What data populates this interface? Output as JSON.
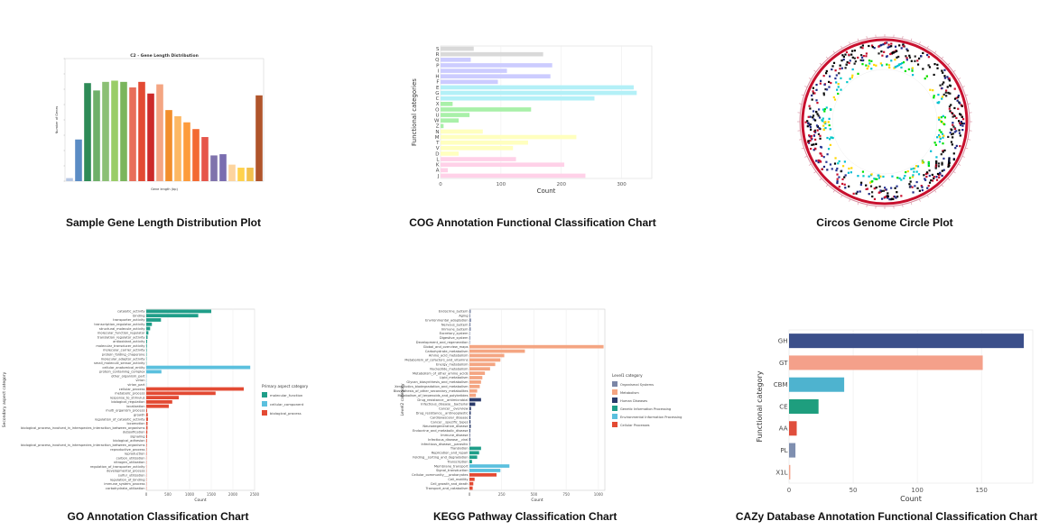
{
  "captions": {
    "p1": "Sample Gene Length Distribution Plot",
    "p2": "COG Annotation Functional Classification Chart",
    "p3": "Circos Genome Circle Plot",
    "p4": "GO Annotation Classification Chart",
    "p5": "KEGG Pathway Classification Chart",
    "p6": "CAZy Database Annotation Functional Classification Chart"
  },
  "chart_data": [
    {
      "type": "bar",
      "title": "C2 - Gene Length Distribution",
      "xlabel": "Gene length (bp)",
      "ylabel": "Number of Genes",
      "ylim": [
        0,
        200
      ],
      "values": [
        5,
        68,
        160,
        148,
        162,
        164,
        162,
        153,
        162,
        143,
        158,
        116,
        106,
        96,
        85,
        72,
        42,
        44,
        27,
        22,
        22,
        140
      ],
      "colors": [
        "#b7c7e3",
        "#5b8cc4",
        "#2e8b57",
        "#6fb06a",
        "#8cc075",
        "#9acd68",
        "#7ab55c",
        "#e86e5a",
        "#e34a33",
        "#cc2a2a",
        "#f4a582",
        "#f28e2b",
        "#fdb863",
        "#fd9b3b",
        "#f36a32",
        "#e6564b",
        "#8073ac",
        "#7a6db0",
        "#fdd49e",
        "#ffd24d",
        "#f2c14e",
        "#b0552b"
      ]
    },
    {
      "type": "bar",
      "orientation": "horizontal",
      "xlabel": "Count",
      "ylabel": "Functional categories",
      "xlim": [
        0,
        350
      ],
      "xticks": [
        0,
        100,
        200,
        300
      ],
      "categories": [
        "S",
        "R",
        "Q",
        "P",
        "I",
        "H",
        "F",
        "E",
        "G",
        "C",
        "X",
        "O",
        "U",
        "W",
        "Z",
        "N",
        "M",
        "T",
        "V",
        "D",
        "L",
        "K",
        "A",
        "J"
      ],
      "values": [
        55,
        170,
        50,
        185,
        110,
        182,
        95,
        320,
        325,
        255,
        20,
        150,
        48,
        30,
        5,
        70,
        225,
        145,
        120,
        30,
        125,
        205,
        12,
        240
      ],
      "colors": [
        "#d9d9d9",
        "#d9d9d9",
        "#ccccff",
        "#ccccff",
        "#ccccff",
        "#ccccff",
        "#ccccff",
        "#b3f0f7",
        "#b3f0f7",
        "#b3f0f7",
        "#a9f0a9",
        "#a9f0a9",
        "#a9f0a9",
        "#a9f0a9",
        "#a9f0a9",
        "#ffffbf",
        "#ffffbf",
        "#ffffbf",
        "#ffffbf",
        "#ffffbf",
        "#ffd1e8",
        "#ffd1e8",
        "#ffd1e8",
        "#ffd1e8"
      ]
    },
    {
      "type": "circos",
      "tracks": [
        "genome-ring",
        "gene-density-outer",
        "gene-density-inner",
        "gc-skew"
      ]
    },
    {
      "type": "bar",
      "orientation": "horizontal",
      "xlabel": "Count",
      "ylabel": "Secondary aspect category",
      "xlim": [
        0,
        2500
      ],
      "xticks": [
        0,
        500,
        1000,
        1500,
        2000,
        2500
      ],
      "legend_title": "Primary aspect category",
      "legend_position": "right",
      "series": [
        {
          "name": "molecular_function",
          "color": "#1f9e89"
        },
        {
          "name": "cellular_component",
          "color": "#5bc0de"
        },
        {
          "name": "biological_process",
          "color": "#e34a33"
        }
      ],
      "categories": [
        "catalytic_activity",
        "binding",
        "transporter_activity",
        "transcription_regulator_activity",
        "structural_molecule_activity",
        "molecular_function_regulator",
        "translation_regulator_activity",
        "antioxidant_activity",
        "molecular_transducer_activity",
        "molecular_carrier_activity",
        "protein_folding_chaperone",
        "molecular_adaptor_activity",
        "small_molecule_sensor_activity",
        "cellular_anatomical_entity",
        "protein_containing_complex",
        "other_organism_part",
        "virion",
        "virion_part",
        "cellular_process",
        "metabolic_process",
        "response_to_stimulus",
        "biological_regulation",
        "localization",
        "multi_organism_process",
        "growth",
        "regulation_of_catalytic_activity",
        "locomotion",
        "biological_process_involved_in_interspecies_interaction_between_organisms",
        "detoxification",
        "signaling",
        "biological_adhesion",
        "biological_process_involved_in_interspecies_interaction_between_organisms",
        "reproductive_process",
        "reproduction",
        "carbon_utilization",
        "nitrogen_utilization",
        "regulation_of_transporter_activity",
        "developmental_process",
        "sulfur_utilization",
        "regulation_of_binding",
        "immune_system_process",
        "carbohydrate_utilization"
      ],
      "values": [
        1500,
        1200,
        340,
        130,
        90,
        50,
        30,
        20,
        15,
        12,
        10,
        8,
        6,
        2400,
        350,
        8,
        4,
        4,
        2250,
        1600,
        750,
        600,
        520,
        20,
        35,
        40,
        30,
        30,
        25,
        20,
        15,
        12,
        10,
        10,
        6,
        6,
        5,
        5,
        4,
        4,
        3,
        3
      ],
      "groups": [
        0,
        0,
        0,
        0,
        0,
        0,
        0,
        0,
        0,
        0,
        0,
        0,
        0,
        1,
        1,
        1,
        1,
        1,
        2,
        2,
        2,
        2,
        2,
        2,
        2,
        2,
        2,
        2,
        2,
        2,
        2,
        2,
        2,
        2,
        2,
        2,
        2,
        2,
        2,
        2,
        2,
        2
      ]
    },
    {
      "type": "bar",
      "orientation": "horizontal",
      "xlabel": "Count",
      "ylabel": "Level2 category",
      "xlim": [
        0,
        1050
      ],
      "xticks": [
        0,
        250,
        500,
        750,
        1000
      ],
      "legend_title": "Level1 category",
      "legend_position": "right",
      "series": [
        {
          "name": "Organismal Systems",
          "color": "#7b86a6"
        },
        {
          "name": "Metabolism",
          "color": "#f4a582"
        },
        {
          "name": "Human Diseases",
          "color": "#2b3b6b"
        },
        {
          "name": "Genetic Information Processing",
          "color": "#1f9e89"
        },
        {
          "name": "Environmental Information Processing",
          "color": "#5bc0de"
        },
        {
          "name": "Cellular Processes",
          "color": "#e34a33"
        }
      ],
      "categories": [
        "Endocrine_system",
        "Aging",
        "Environmental_adaptation",
        "Nervous_system",
        "Immune_system",
        "Excretory_system",
        "Digestive_system",
        "Development_and_regeneration",
        "Global_and_overview_maps",
        "Carbohydrate_metabolism",
        "Amino_acid_metabolism",
        "Metabolism_of_cofactors_and_vitamins",
        "Energy_metabolism",
        "Nucleotide_metabolism",
        "Metabolism_of_other_amino_acids",
        "Lipid_metabolism",
        "Glycan_biosynthesis_and_metabolism",
        "Xenobiotics_biodegradation_and_metabolism",
        "Biosynthesis_of_other_secondary_metabolites",
        "Metabolism_of_terpenoids_and_polyketides",
        "Drug_resistance__antimicrobial",
        "Infectious_disease__bacterial",
        "Cancer__overview",
        "Drug_resistance__antineoplastic",
        "Cardiovascular_disease",
        "Cancer__specific_types",
        "Neurodegenerative_disease",
        "Endocrine_and_metabolic_disease",
        "Immune_disease",
        "Infectious_disease__viral",
        "Infectious_disease__parasitic",
        "Translation",
        "Replication_and_repair",
        "Folding__sorting_and_degradation",
        "Transcription",
        "Membrane_transport",
        "Signal_transduction",
        "Cellular_community___prokaryotes",
        "Cell_motility",
        "Cell_growth_and_death",
        "Transport_and_catabolism"
      ],
      "values": [
        10,
        6,
        12,
        8,
        10,
        4,
        6,
        4,
        1040,
        430,
        270,
        240,
        200,
        160,
        120,
        100,
        90,
        80,
        60,
        50,
        90,
        45,
        12,
        10,
        8,
        8,
        10,
        6,
        4,
        6,
        4,
        90,
        75,
        60,
        20,
        310,
        240,
        210,
        40,
        30,
        25
      ],
      "groups": [
        0,
        0,
        0,
        0,
        0,
        0,
        0,
        0,
        1,
        1,
        1,
        1,
        1,
        1,
        1,
        1,
        1,
        1,
        1,
        1,
        2,
        2,
        2,
        2,
        2,
        2,
        2,
        2,
        2,
        2,
        2,
        3,
        3,
        3,
        3,
        4,
        4,
        5,
        5,
        5,
        5
      ]
    },
    {
      "type": "bar",
      "orientation": "horizontal",
      "xlabel": "Count",
      "ylabel": "Functional category",
      "xlim": [
        0,
        190
      ],
      "xticks": [
        0,
        50,
        100,
        150
      ],
      "categories": [
        "GH",
        "GT",
        "CBM",
        "CE",
        "AA",
        "PL",
        "X1L"
      ],
      "values": [
        183,
        151,
        43,
        23,
        6,
        5,
        1
      ],
      "colors": [
        "#3b4f8a",
        "#f4a08a",
        "#4eb3cf",
        "#1e9e7e",
        "#e04e3c",
        "#7f8fb0",
        "#f2a58e"
      ]
    }
  ]
}
